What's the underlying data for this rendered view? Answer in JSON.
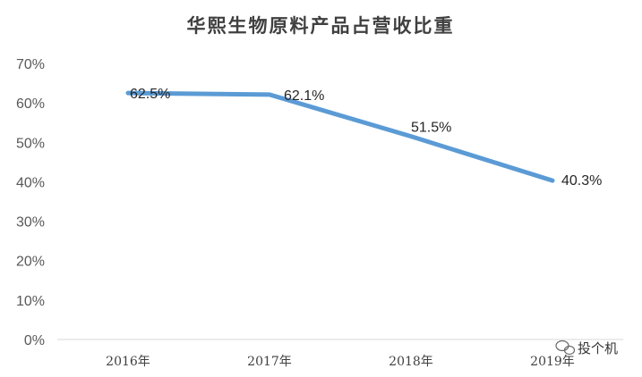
{
  "chart_data": {
    "type": "line",
    "title": "华熙生物原料产品占营收比重",
    "categories": [
      "2016年",
      "2017年",
      "2018年",
      "2019年"
    ],
    "series": [
      {
        "values": [
          62.5,
          62.1,
          51.5,
          40.3
        ],
        "color": "#5B9BD5"
      }
    ],
    "data_labels": [
      "62.5%",
      "62.1%",
      "51.5%",
      "40.3%"
    ],
    "y_ticks": [
      "0%",
      "10%",
      "20%",
      "30%",
      "40%",
      "50%",
      "60%",
      "70%"
    ],
    "ylim": [
      0,
      70
    ],
    "grid": false,
    "legend": "none"
  },
  "watermark": {
    "text": "投个机"
  }
}
